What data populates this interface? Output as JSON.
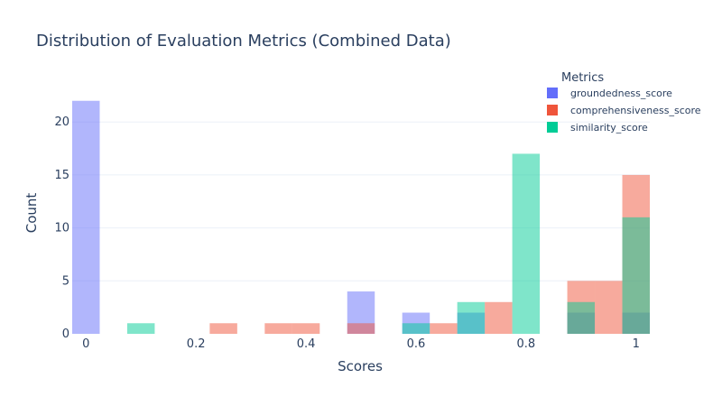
{
  "chart_data": {
    "type": "bar",
    "barmode": "overlay",
    "title": "Distribution of Evaluation Metrics (Combined Data)",
    "xlabel": "Scores",
    "ylabel": "Count",
    "xlim": [
      -0.025,
      1.025
    ],
    "ylim": [
      0,
      23
    ],
    "xticks": [
      0,
      0.2,
      0.4,
      0.6,
      0.8,
      1
    ],
    "xtick_labels": [
      "0",
      "0.2",
      "0.4",
      "0.6",
      "0.8",
      "1"
    ],
    "yticks": [
      0,
      5,
      10,
      15,
      20
    ],
    "ytick_labels": [
      "0",
      "5",
      "10",
      "15",
      "20"
    ],
    "legend_title": "Metrics",
    "legend_position": "top-right",
    "bin_width": 0.05,
    "opacity": 0.5,
    "series": [
      {
        "name": "groundedness_score",
        "color": "#636efa",
        "bins": [
          {
            "start": -0.025,
            "value": 22
          },
          {
            "start": 0.475,
            "value": 4
          },
          {
            "start": 0.575,
            "value": 2
          },
          {
            "start": 0.675,
            "value": 2
          },
          {
            "start": 0.875,
            "value": 2
          },
          {
            "start": 0.975,
            "value": 2
          }
        ]
      },
      {
        "name": "comprehensiveness_score",
        "color": "#EF553B",
        "bins": [
          {
            "start": 0.225,
            "value": 1
          },
          {
            "start": 0.325,
            "value": 1
          },
          {
            "start": 0.375,
            "value": 1
          },
          {
            "start": 0.475,
            "value": 1
          },
          {
            "start": 0.625,
            "value": 1
          },
          {
            "start": 0.725,
            "value": 3
          },
          {
            "start": 0.875,
            "value": 5
          },
          {
            "start": 0.925,
            "value": 5
          },
          {
            "start": 0.975,
            "value": 15
          }
        ]
      },
      {
        "name": "similarity_score",
        "color": "#00cc96",
        "bins": [
          {
            "start": 0.075,
            "value": 1
          },
          {
            "start": 0.575,
            "value": 1
          },
          {
            "start": 0.675,
            "value": 3
          },
          {
            "start": 0.775,
            "value": 17
          },
          {
            "start": 0.875,
            "value": 3
          },
          {
            "start": 0.975,
            "value": 11
          }
        ]
      }
    ]
  }
}
